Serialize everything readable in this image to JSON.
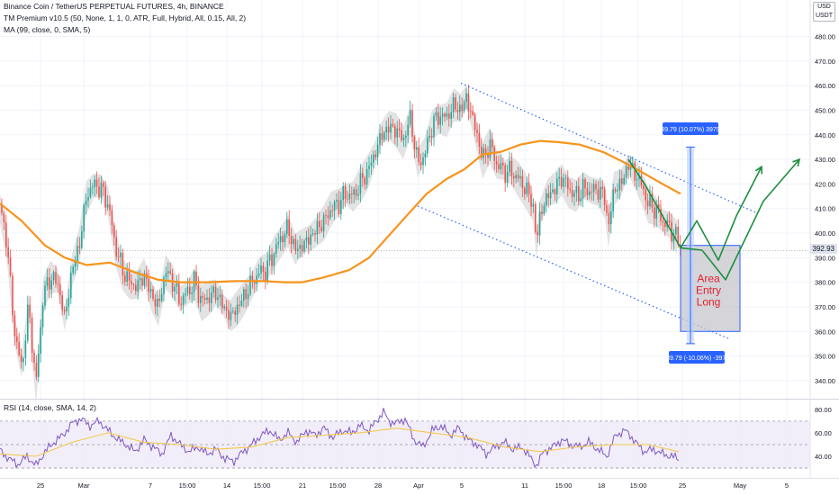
{
  "header": {
    "title": "Binance Coin / TetherUS PERPETUAL FUTURES, 4h, BINANCE",
    "indicator1": "TM Premium v10.5 (50, None, 1, 1, 0, ATR, Full, Hybrid, All, 0.15, All, 2)",
    "indicator2": "MA (99, close, 0, SMA, 5)",
    "currency_line1": "USD",
    "currency_line2": "USDT"
  },
  "rsi_panel": {
    "label": "RSI (14, close, SMA, 14, 2)"
  },
  "last_price": "392.93",
  "annotations": {
    "upper_measure": "39.79 (10.07%) 3979",
    "lower_measure": "-39.79 (-10.06%) -3979",
    "area_text": [
      "Area",
      "Entry",
      "Long"
    ]
  },
  "colors": {
    "up_candle": "#26a69a",
    "down_candle": "#ef5350",
    "ma_line": "#f7931a",
    "band": "#d9d9d9",
    "channel": "#2962ff",
    "projection": "#1e8e3e",
    "box_fill": "#c6c6cc",
    "box_border": "#2962ff",
    "area_text": "#e0202e",
    "rsi_line": "#7e57c2",
    "rsi_ma": "#f2c94c",
    "rsi_fill": "#ede7f6"
  },
  "chart_data": [
    {
      "type": "candlestick",
      "title": "Binance Coin / TetherUS PERPETUAL FUTURES, 4h, BINANCE",
      "y_ticks": [
        340,
        350,
        360,
        370,
        380,
        390,
        400,
        410,
        420,
        430,
        440,
        450,
        460,
        470,
        480
      ],
      "ylim": [
        333,
        493
      ],
      "x_tick_labels": [
        "25",
        "Mar",
        "7",
        "15:00",
        "14",
        "15:00",
        "21",
        "15:00",
        "28",
        "Apr",
        "5",
        "11",
        "15:00",
        "18",
        "15:00",
        "25",
        "May",
        "5"
      ],
      "price_path": [
        [
          0,
          412
        ],
        [
          8,
          395
        ],
        [
          16,
          360
        ],
        [
          24,
          345
        ],
        [
          32,
          370
        ],
        [
          40,
          338
        ],
        [
          48,
          375
        ],
        [
          56,
          382
        ],
        [
          64,
          380
        ],
        [
          72,
          365
        ],
        [
          80,
          385
        ],
        [
          88,
          395
        ],
        [
          96,
          415
        ],
        [
          104,
          420
        ],
        [
          112,
          418
        ],
        [
          120,
          412
        ],
        [
          128,
          395
        ],
        [
          136,
          385
        ],
        [
          144,
          380
        ],
        [
          152,
          378
        ],
        [
          160,
          383
        ],
        [
          168,
          375
        ],
        [
          176,
          370
        ],
        [
          184,
          385
        ],
        [
          192,
          380
        ],
        [
          200,
          372
        ],
        [
          208,
          376
        ],
        [
          216,
          380
        ],
        [
          224,
          372
        ],
        [
          232,
          374
        ],
        [
          240,
          376
        ],
        [
          248,
          370
        ],
        [
          256,
          366
        ],
        [
          264,
          370
        ],
        [
          272,
          375
        ],
        [
          280,
          380
        ],
        [
          288,
          384
        ],
        [
          296,
          385
        ],
        [
          304,
          392
        ],
        [
          312,
          398
        ],
        [
          320,
          402
        ],
        [
          328,
          393
        ],
        [
          336,
          395
        ],
        [
          344,
          398
        ],
        [
          352,
          402
        ],
        [
          360,
          405
        ],
        [
          368,
          410
        ],
        [
          376,
          412
        ],
        [
          384,
          416
        ],
        [
          392,
          415
        ],
        [
          400,
          420
        ],
        [
          408,
          425
        ],
        [
          416,
          432
        ],
        [
          424,
          440
        ],
        [
          432,
          443
        ],
        [
          440,
          442
        ],
        [
          448,
          438
        ],
        [
          456,
          447
        ],
        [
          464,
          428
        ],
        [
          472,
          432
        ],
        [
          480,
          444
        ],
        [
          488,
          448
        ],
        [
          496,
          447
        ],
        [
          504,
          452
        ],
        [
          512,
          450
        ],
        [
          518,
          455
        ],
        [
          524,
          448
        ],
        [
          530,
          440
        ],
        [
          536,
          430
        ],
        [
          544,
          436
        ],
        [
          552,
          428
        ],
        [
          560,
          425
        ],
        [
          568,
          425
        ],
        [
          576,
          422
        ],
        [
          584,
          418
        ],
        [
          592,
          412
        ],
        [
          596,
          396
        ],
        [
          600,
          408
        ],
        [
          608,
          415
        ],
        [
          616,
          418
        ],
        [
          624,
          423
        ],
        [
          632,
          418
        ],
        [
          640,
          415
        ],
        [
          648,
          418
        ],
        [
          656,
          417
        ],
        [
          664,
          418
        ],
        [
          672,
          414
        ],
        [
          676,
          402
        ],
        [
          682,
          418
        ],
        [
          690,
          420
        ],
        [
          698,
          428
        ],
        [
          704,
          425
        ],
        [
          712,
          420
        ],
        [
          720,
          412
        ],
        [
          728,
          410
        ],
        [
          736,
          405
        ],
        [
          744,
          402
        ],
        [
          752,
          398
        ],
        [
          758,
          393
        ]
      ],
      "ma_path": [
        [
          0,
          412
        ],
        [
          24,
          405
        ],
        [
          50,
          395
        ],
        [
          72,
          390
        ],
        [
          96,
          387
        ],
        [
          122,
          388
        ],
        [
          150,
          384
        ],
        [
          176,
          381
        ],
        [
          200,
          380
        ],
        [
          232,
          380
        ],
        [
          262,
          380.5
        ],
        [
          292,
          380.5
        ],
        [
          316,
          380
        ],
        [
          336,
          380
        ],
        [
          360,
          382
        ],
        [
          388,
          385
        ],
        [
          410,
          390
        ],
        [
          432,
          399
        ],
        [
          454,
          408
        ],
        [
          474,
          416
        ],
        [
          496,
          422
        ],
        [
          516,
          426
        ],
        [
          536,
          432
        ],
        [
          556,
          433
        ],
        [
          578,
          436
        ],
        [
          600,
          437.5
        ],
        [
          620,
          437
        ],
        [
          644,
          436
        ],
        [
          670,
          433
        ],
        [
          692,
          429
        ],
        [
          712,
          425
        ],
        [
          736,
          420
        ],
        [
          756,
          416
        ]
      ],
      "channel_upper": [
        [
          512,
          461
        ],
        [
          842,
          408
        ]
      ],
      "channel_lower": [
        [
          464,
          411
        ],
        [
          810,
          357
        ]
      ],
      "projection_1": [
        [
          698,
          430
        ],
        [
          716,
          420
        ],
        [
          756,
          394
        ],
        [
          774,
          405
        ],
        [
          798,
          389
        ],
        [
          818,
          407
        ],
        [
          846,
          427
        ]
      ],
      "projection_2": [
        [
          756,
          394
        ],
        [
          780,
          393
        ],
        [
          806,
          381
        ],
        [
          848,
          413
        ],
        [
          888,
          430
        ]
      ],
      "measure_band": {
        "x": 767,
        "top": 435,
        "bottom": 355
      },
      "entry_box": {
        "from_x": 756,
        "to_x": 822,
        "top": 395,
        "bottom": 360
      },
      "last_price": 392.93
    },
    {
      "type": "line",
      "title": "RSI (14, close, SMA, 14, 2)",
      "y_ticks": [
        40,
        60,
        80
      ],
      "ylim": [
        27,
        86
      ],
      "bands": [
        30,
        50,
        70
      ],
      "rsi_path": [
        [
          0,
          45
        ],
        [
          10,
          38
        ],
        [
          20,
          33
        ],
        [
          30,
          40
        ],
        [
          40,
          32
        ],
        [
          50,
          44
        ],
        [
          60,
          52
        ],
        [
          70,
          58
        ],
        [
          80,
          68
        ],
        [
          90,
          72
        ],
        [
          100,
          66
        ],
        [
          110,
          70
        ],
        [
          120,
          62
        ],
        [
          130,
          55
        ],
        [
          140,
          50
        ],
        [
          150,
          44
        ],
        [
          160,
          54
        ],
        [
          170,
          48
        ],
        [
          180,
          42
        ],
        [
          190,
          58
        ],
        [
          200,
          50
        ],
        [
          210,
          44
        ],
        [
          220,
          48
        ],
        [
          230,
          42
        ],
        [
          240,
          46
        ],
        [
          250,
          38
        ],
        [
          260,
          36
        ],
        [
          270,
          44
        ],
        [
          280,
          50
        ],
        [
          290,
          58
        ],
        [
          300,
          62
        ],
        [
          310,
          54
        ],
        [
          320,
          60
        ],
        [
          330,
          52
        ],
        [
          340,
          62
        ],
        [
          350,
          58
        ],
        [
          360,
          64
        ],
        [
          370,
          56
        ],
        [
          380,
          62
        ],
        [
          390,
          60
        ],
        [
          400,
          66
        ],
        [
          410,
          62
        ],
        [
          420,
          72
        ],
        [
          426,
          78
        ],
        [
          432,
          70
        ],
        [
          440,
          68
        ],
        [
          450,
          72
        ],
        [
          460,
          54
        ],
        [
          470,
          48
        ],
        [
          480,
          62
        ],
        [
          490,
          66
        ],
        [
          500,
          58
        ],
        [
          510,
          64
        ],
        [
          520,
          54
        ],
        [
          530,
          50
        ],
        [
          540,
          42
        ],
        [
          550,
          48
        ],
        [
          560,
          52
        ],
        [
          570,
          46
        ],
        [
          580,
          48
        ],
        [
          590,
          38
        ],
        [
          596,
          32
        ],
        [
          604,
          44
        ],
        [
          614,
          48
        ],
        [
          624,
          54
        ],
        [
          634,
          50
        ],
        [
          644,
          48
        ],
        [
          654,
          52
        ],
        [
          664,
          46
        ],
        [
          674,
          40
        ],
        [
          684,
          58
        ],
        [
          694,
          62
        ],
        [
          700,
          58
        ],
        [
          708,
          50
        ],
        [
          716,
          44
        ],
        [
          726,
          46
        ],
        [
          736,
          42
        ],
        [
          746,
          40
        ],
        [
          754,
          38
        ]
      ],
      "rsi_ma_path": [
        [
          0,
          42
        ],
        [
          40,
          40
        ],
        [
          80,
          52
        ],
        [
          120,
          60
        ],
        [
          160,
          52
        ],
        [
          200,
          50
        ],
        [
          240,
          46
        ],
        [
          280,
          48
        ],
        [
          320,
          56
        ],
        [
          360,
          58
        ],
        [
          400,
          60
        ],
        [
          440,
          64
        ],
        [
          480,
          60
        ],
        [
          520,
          56
        ],
        [
          560,
          48
        ],
        [
          600,
          44
        ],
        [
          640,
          48
        ],
        [
          680,
          50
        ],
        [
          720,
          50
        ],
        [
          754,
          44
        ]
      ]
    }
  ]
}
